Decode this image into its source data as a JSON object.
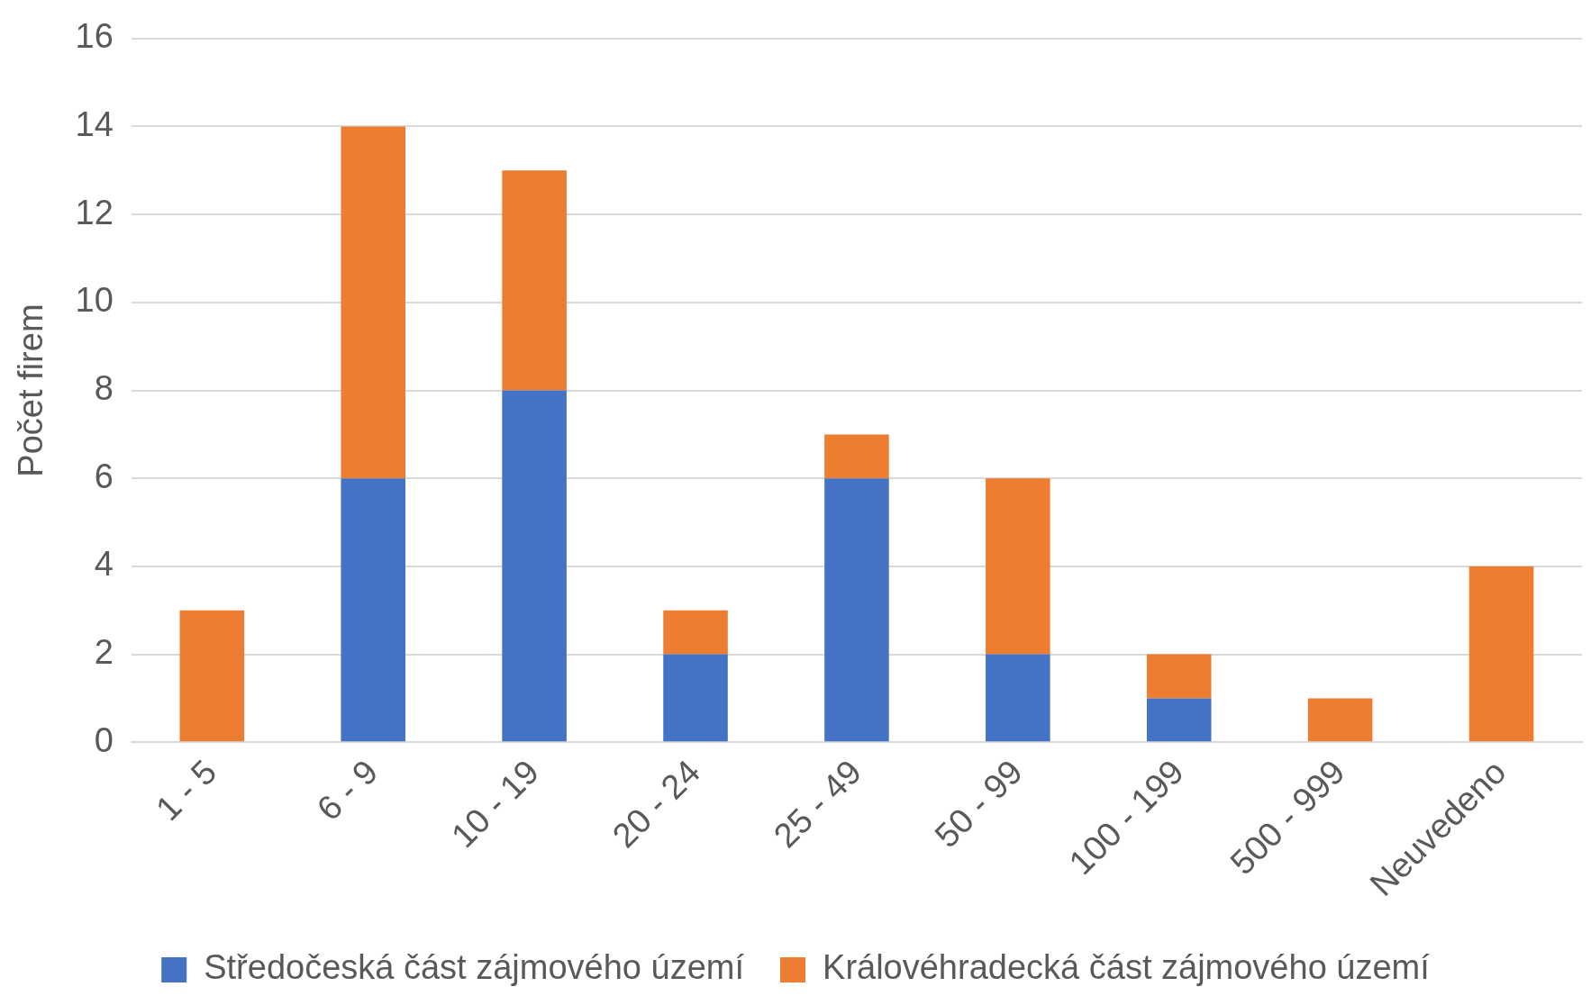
{
  "chart_data": {
    "type": "bar",
    "ylabel": "Počet firem",
    "categories": [
      "1 - 5",
      "6 - 9",
      "10 - 19",
      "20 - 24",
      "25 - 49",
      "50 - 99",
      "100 - 199",
      "500 - 999",
      "Neuvedeno"
    ],
    "series": [
      {
        "name": "Středočeská část zájmového území",
        "color": "#4472c4",
        "values": [
          null,
          6,
          8,
          2,
          6,
          2,
          1,
          null,
          null
        ]
      },
      {
        "name": "Královéhradecká část zájmového území",
        "color": "#ed7d31",
        "values": [
          3,
          8,
          5,
          1,
          1,
          4,
          1,
          1,
          4
        ]
      }
    ],
    "stacked": true,
    "ylim": [
      0,
      16
    ],
    "yticks": [
      0,
      2,
      4,
      6,
      8,
      10,
      12,
      14,
      16
    ],
    "grid": "y",
    "legend": "bottom"
  }
}
